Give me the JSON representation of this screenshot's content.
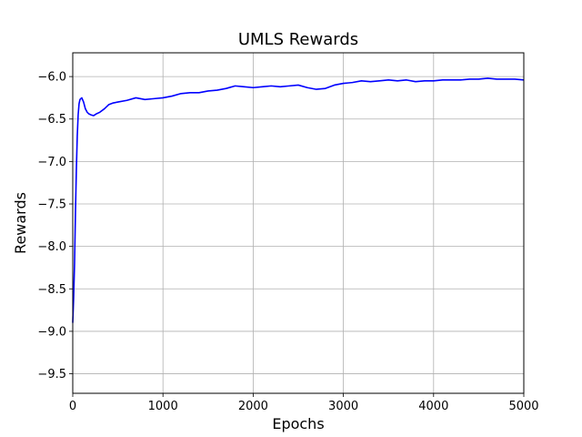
{
  "chart_data": {
    "type": "line",
    "title": "UMLS Rewards",
    "xlabel": "Epochs",
    "ylabel": "Rewards",
    "xlim": [
      0,
      5000
    ],
    "ylim": [
      -9.73,
      -5.72
    ],
    "xticks": [
      0,
      1000,
      2000,
      3000,
      4000,
      5000
    ],
    "xtick_labels": [
      "0",
      "1000",
      "2000",
      "3000",
      "4000",
      "5000"
    ],
    "yticks": [
      -9.5,
      -9.0,
      -8.5,
      -8.0,
      -7.5,
      -7.0,
      -6.5,
      -6.0
    ],
    "ytick_labels": [
      "−9.5",
      "−9.0",
      "−8.5",
      "−8.0",
      "−7.5",
      "−7.0",
      "−6.5",
      "−6.0"
    ],
    "grid": true,
    "series": [
      {
        "color": "#0000ff",
        "x": [
          0,
          10,
          20,
          30,
          40,
          50,
          60,
          70,
          80,
          90,
          100,
          120,
          140,
          160,
          180,
          200,
          230,
          260,
          300,
          350,
          400,
          450,
          500,
          600,
          700,
          800,
          900,
          1000,
          1100,
          1200,
          1300,
          1400,
          1500,
          1600,
          1700,
          1800,
          1900,
          2000,
          2100,
          2200,
          2300,
          2400,
          2500,
          2600,
          2700,
          2800,
          2900,
          3000,
          3100,
          3200,
          3300,
          3400,
          3500,
          3600,
          3700,
          3800,
          3900,
          4000,
          4100,
          4200,
          4300,
          4400,
          4500,
          4600,
          4700,
          4800,
          4900,
          5000
        ],
        "y": [
          -8.9,
          -8.6,
          -8.2,
          -7.6,
          -7.1,
          -6.7,
          -6.45,
          -6.32,
          -6.27,
          -6.26,
          -6.25,
          -6.3,
          -6.38,
          -6.42,
          -6.44,
          -6.45,
          -6.46,
          -6.44,
          -6.42,
          -6.38,
          -6.33,
          -6.31,
          -6.3,
          -6.28,
          -6.25,
          -6.27,
          -6.26,
          -6.25,
          -6.23,
          -6.2,
          -6.19,
          -6.19,
          -6.17,
          -6.16,
          -6.14,
          -6.11,
          -6.12,
          -6.13,
          -6.12,
          -6.11,
          -6.12,
          -6.11,
          -6.1,
          -6.13,
          -6.15,
          -6.14,
          -6.1,
          -6.08,
          -6.07,
          -6.05,
          -6.06,
          -6.05,
          -6.04,
          -6.05,
          -6.04,
          -6.06,
          -6.05,
          -6.05,
          -6.04,
          -6.04,
          -6.04,
          -6.03,
          -6.03,
          -6.02,
          -6.03,
          -6.03,
          -6.03,
          -6.04
        ]
      }
    ]
  }
}
